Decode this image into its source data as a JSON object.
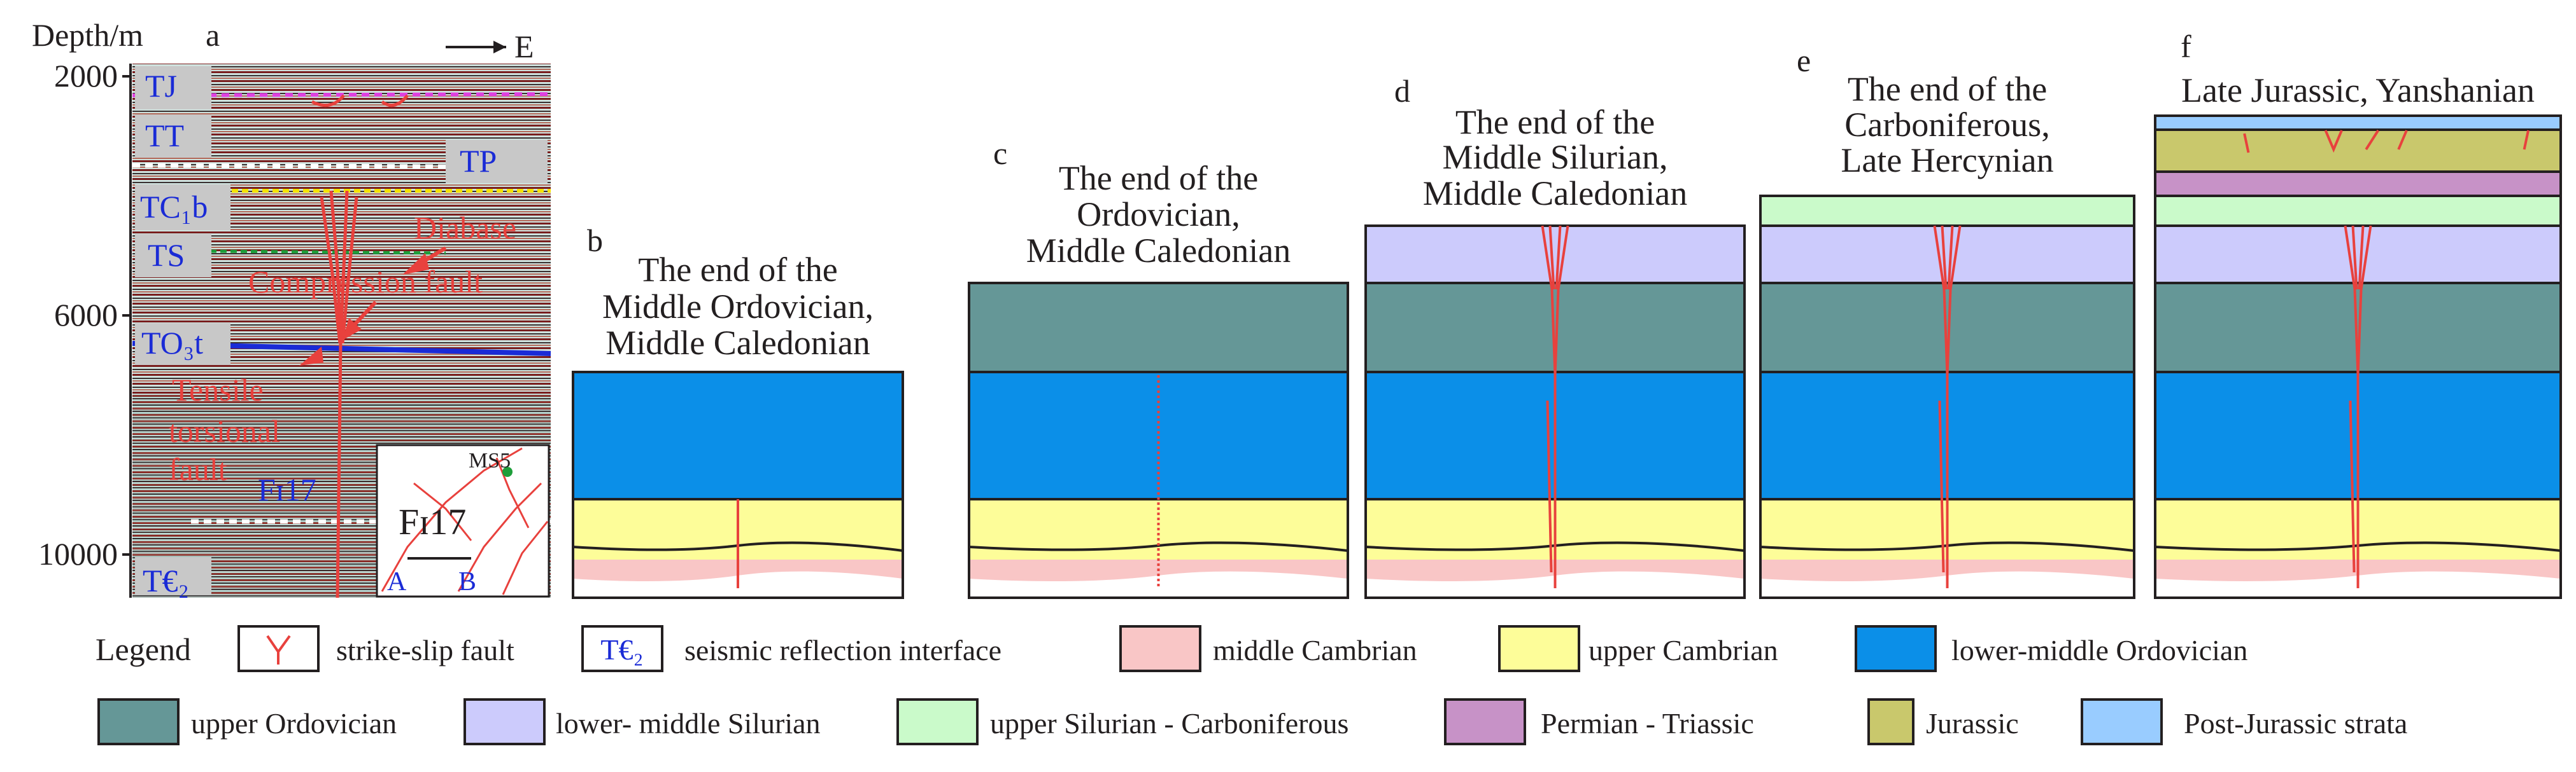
{
  "seismic": {
    "depth_axis_title": "Depth/m",
    "panel_letter": "a",
    "direction": "E",
    "depth_ticks": [
      "2000",
      "6000",
      "10000"
    ],
    "horizons": [
      "TJ",
      "TT",
      "TP",
      "TC₁b",
      "TS",
      "TO₃t",
      "T€₂"
    ],
    "annotations": {
      "diabase": "Diabase",
      "compression": "Compression fault",
      "tensile1": "Tensile",
      "tensile2": "torsional",
      "tensile3": "fault",
      "fault_name": "Fɪ17"
    },
    "inset": {
      "well": "MS5",
      "fault": "Fɪ17",
      "a": "A",
      "b": "B"
    }
  },
  "stages": [
    {
      "letter": "b",
      "title": [
        "The end of the",
        "Middle Ordovician,",
        "Middle Caledonian"
      ]
    },
    {
      "letter": "c",
      "title": [
        "The end of the",
        "Ordovician,",
        "Middle Caledonian"
      ]
    },
    {
      "letter": "d",
      "title": [
        "The end of the",
        "Middle Silurian,",
        "Middle Caledonian"
      ]
    },
    {
      "letter": "e",
      "title": [
        "The end of the",
        "Carboniferous,",
        "Late Hercynian"
      ]
    },
    {
      "letter": "f",
      "title": [
        "Late Jurassic, Yanshanian"
      ]
    }
  ],
  "legend": {
    "title": "Legend",
    "items": [
      {
        "label": "strike-slip fault",
        "kind": "fault"
      },
      {
        "label": "seismic reflection interface",
        "kind": "interface",
        "symbol": "T€₂"
      },
      {
        "label": "middle Cambrian",
        "color": "#f9c6c6"
      },
      {
        "label": "upper Cambrian",
        "color": "#fdfd99"
      },
      {
        "label": "lower-middle Ordovician",
        "color": "#0b8fe8"
      },
      {
        "label": "upper Ordovician",
        "color": "#659797"
      },
      {
        "label": "lower- middle Silurian",
        "color": "#cccbfc"
      },
      {
        "label": "upper Silurian - Carboniferous",
        "color": "#cafaca"
      },
      {
        "label": "Permian - Triassic",
        "color": "#c792c7"
      },
      {
        "label": "Jurassic",
        "color": "#c9c86c"
      },
      {
        "label": "Post-Jurassic strata",
        "color": "#99ccff"
      }
    ]
  }
}
